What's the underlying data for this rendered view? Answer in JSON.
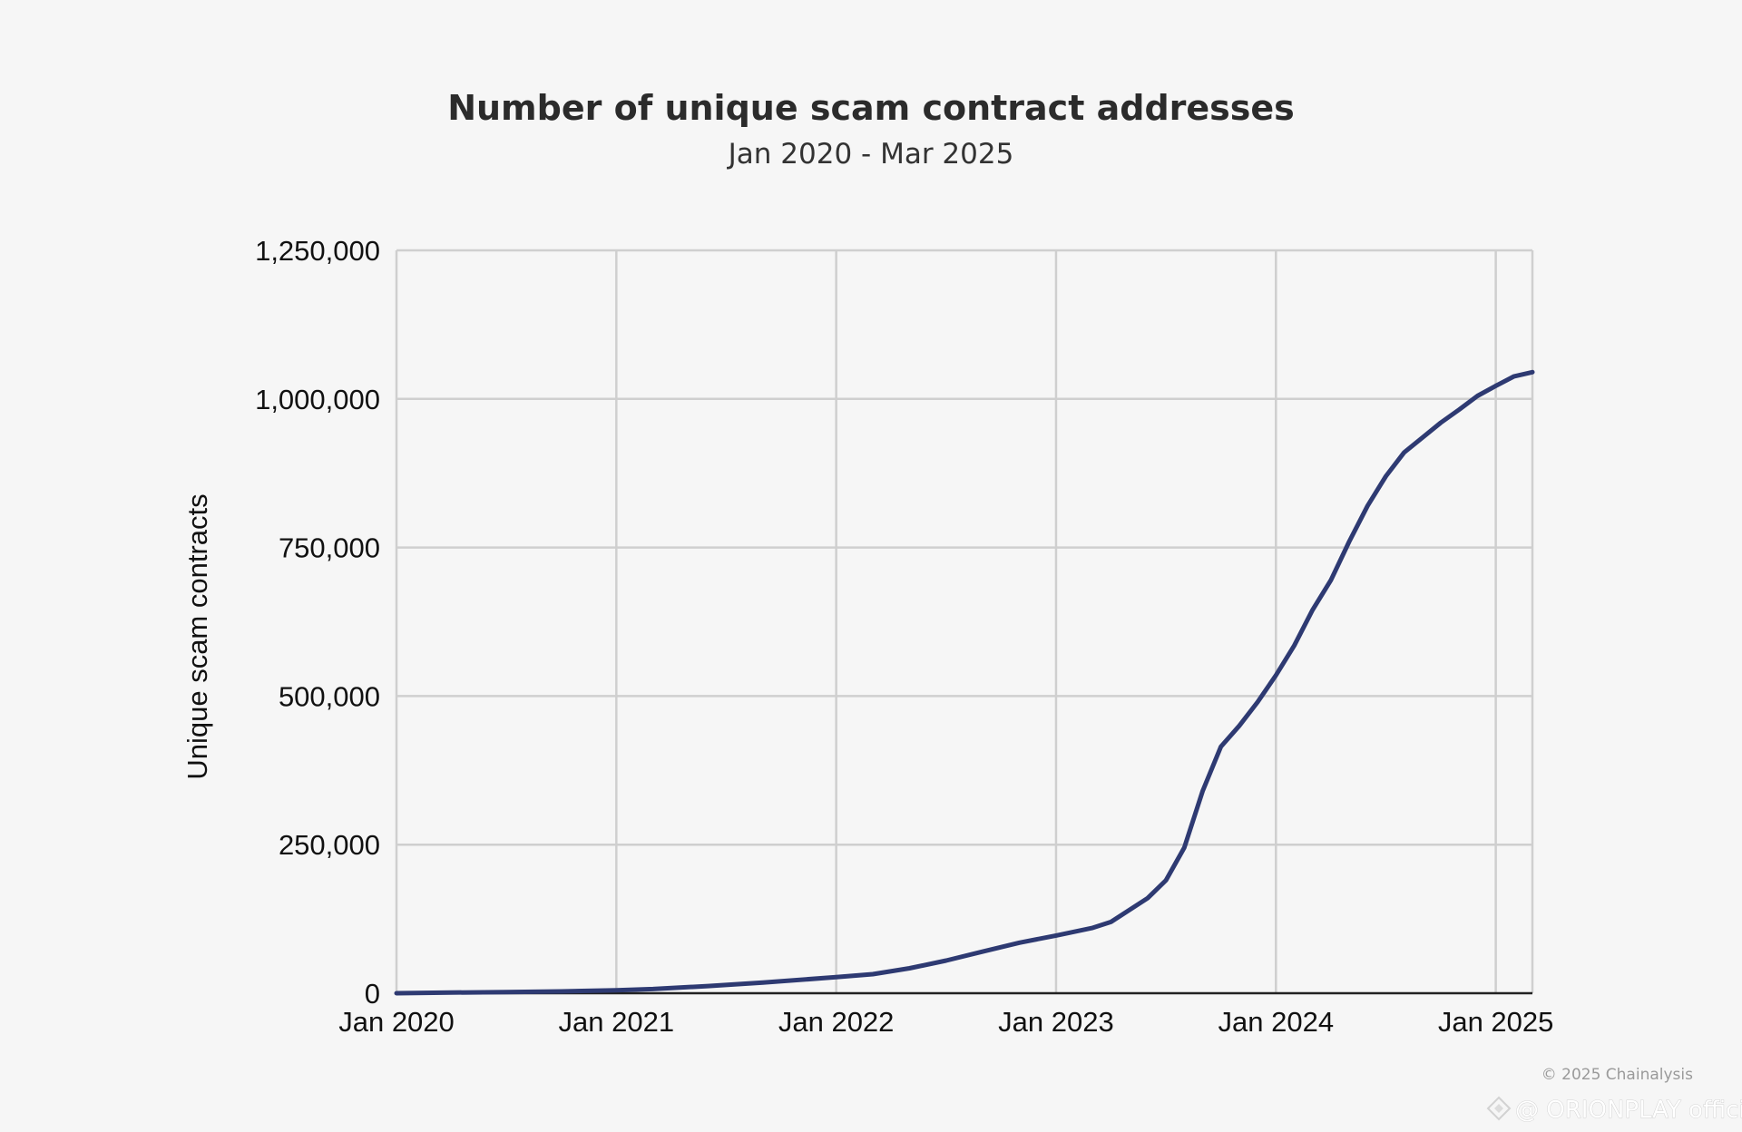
{
  "chart_data": {
    "type": "line",
    "title": "Number of unique scam contract addresses",
    "subtitle": "Jan 2020 - Mar 2025",
    "xlabel": "",
    "ylabel": "Unique scam contracts",
    "x_tick_labels": [
      "Jan 2020",
      "Jan 2021",
      "Jan 2022",
      "Jan 2023",
      "Jan 2024",
      "Jan 2025"
    ],
    "y_tick_labels": [
      "0",
      "250,000",
      "500,000",
      "750,000",
      "1,000,000",
      "1,250,000"
    ],
    "y_ticks": [
      0,
      250000,
      500000,
      750000,
      1000000,
      1250000
    ],
    "ylim": [
      0,
      1250000
    ],
    "xlim": [
      "2020-01",
      "2025-03"
    ],
    "grid": true,
    "legend": "none",
    "series": [
      {
        "color": "#2e3a72",
        "points": [
          {
            "x": "2020-01",
            "y": 0
          },
          {
            "x": "2020-04",
            "y": 1000
          },
          {
            "x": "2020-07",
            "y": 2000
          },
          {
            "x": "2020-10",
            "y": 3000
          },
          {
            "x": "2021-01",
            "y": 5000
          },
          {
            "x": "2021-03",
            "y": 7000
          },
          {
            "x": "2021-06",
            "y": 12000
          },
          {
            "x": "2021-09",
            "y": 18000
          },
          {
            "x": "2022-01",
            "y": 27000
          },
          {
            "x": "2022-03",
            "y": 32000
          },
          {
            "x": "2022-05",
            "y": 42000
          },
          {
            "x": "2022-07",
            "y": 55000
          },
          {
            "x": "2022-09",
            "y": 70000
          },
          {
            "x": "2022-11",
            "y": 85000
          },
          {
            "x": "2023-01",
            "y": 97000
          },
          {
            "x": "2023-03",
            "y": 110000
          },
          {
            "x": "2023-04",
            "y": 120000
          },
          {
            "x": "2023-06",
            "y": 160000
          },
          {
            "x": "2023-07",
            "y": 190000
          },
          {
            "x": "2023-08",
            "y": 245000
          },
          {
            "x": "2023-09",
            "y": 340000
          },
          {
            "x": "2023-10",
            "y": 415000
          },
          {
            "x": "2023-11",
            "y": 450000
          },
          {
            "x": "2023-12",
            "y": 490000
          },
          {
            "x": "2024-01",
            "y": 535000
          },
          {
            "x": "2024-02",
            "y": 585000
          },
          {
            "x": "2024-03",
            "y": 645000
          },
          {
            "x": "2024-04",
            "y": 695000
          },
          {
            "x": "2024-05",
            "y": 760000
          },
          {
            "x": "2024-06",
            "y": 820000
          },
          {
            "x": "2024-07",
            "y": 870000
          },
          {
            "x": "2024-08",
            "y": 910000
          },
          {
            "x": "2024-09",
            "y": 935000
          },
          {
            "x": "2024-10",
            "y": 960000
          },
          {
            "x": "2024-11",
            "y": 982000
          },
          {
            "x": "2024-12",
            "y": 1005000
          },
          {
            "x": "2025-01",
            "y": 1022000
          },
          {
            "x": "2025-02",
            "y": 1038000
          },
          {
            "x": "2025-03",
            "y": 1045000
          }
        ]
      }
    ]
  },
  "footer": {
    "credit": "© 2025 Chainalysis",
    "watermark": "@ ORIONPLAY official"
  }
}
